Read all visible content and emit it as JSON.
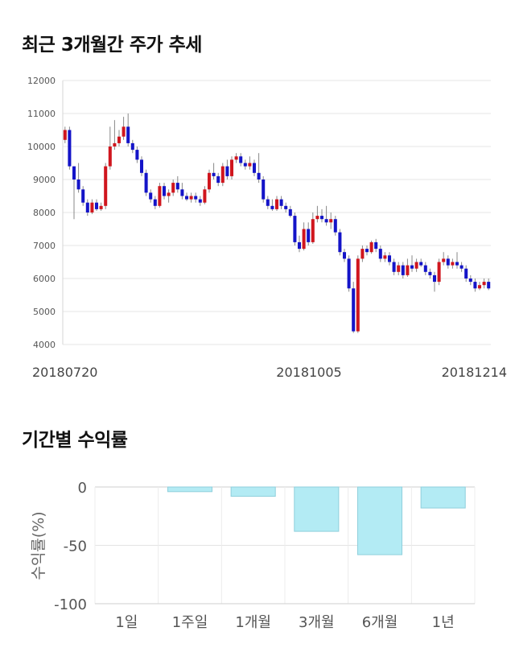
{
  "section1": {
    "title": "최근 3개월간 주가 추세"
  },
  "section2": {
    "title": "기간별 수익률"
  },
  "chart_data": [
    {
      "type": "candlestick",
      "y_ticks": [
        4000,
        5000,
        6000,
        7000,
        8000,
        9000,
        10000,
        11000,
        12000
      ],
      "ylim": [
        4000,
        12000
      ],
      "x_labels": [
        "20180720",
        "20181005",
        "20181214"
      ],
      "up_color": "#d0161e",
      "down_color": "#1414c8",
      "candles": [
        [
          10200,
          10500,
          10600,
          10100
        ],
        [
          10500,
          9400,
          10600,
          9300
        ],
        [
          9400,
          9000,
          9100,
          7800
        ],
        [
          9000,
          8700,
          9500,
          8600
        ],
        [
          8700,
          8300,
          8800,
          8200
        ],
        [
          8300,
          8000,
          8400,
          7900
        ],
        [
          8000,
          8300,
          8400,
          7950
        ],
        [
          8300,
          8100,
          8400,
          8050
        ],
        [
          8100,
          8200,
          8300,
          8050
        ],
        [
          8200,
          9400,
          9500,
          8100
        ],
        [
          9400,
          10000,
          10600,
          9300
        ],
        [
          10000,
          10100,
          10800,
          9900
        ],
        [
          10100,
          10300,
          10500,
          10000
        ],
        [
          10300,
          10600,
          10900,
          10200
        ],
        [
          10600,
          10100,
          11000,
          10000
        ],
        [
          10100,
          9900,
          10200,
          9800
        ],
        [
          9900,
          9600,
          10000,
          9500
        ],
        [
          9600,
          9200,
          9700,
          9100
        ],
        [
          9200,
          8600,
          9300,
          8500
        ],
        [
          8600,
          8400,
          8700,
          8300
        ],
        [
          8400,
          8200,
          8500,
          8100
        ],
        [
          8200,
          8800,
          8900,
          8150
        ],
        [
          8800,
          8500,
          8900,
          8400
        ],
        [
          8500,
          8600,
          8700,
          8300
        ],
        [
          8600,
          8900,
          9000,
          8500
        ],
        [
          8900,
          8700,
          9100,
          8600
        ],
        [
          8700,
          8500,
          8900,
          8400
        ],
        [
          8500,
          8400,
          8600,
          8350
        ],
        [
          8400,
          8500,
          8600,
          8300
        ],
        [
          8500,
          8400,
          8600,
          8300
        ],
        [
          8400,
          8300,
          8500,
          8200
        ],
        [
          8300,
          8700,
          8800,
          8250
        ],
        [
          8700,
          9200,
          9300,
          8600
        ],
        [
          9200,
          9100,
          9500,
          9000
        ],
        [
          9100,
          8900,
          9200,
          8800
        ],
        [
          8900,
          9400,
          9500,
          8800
        ],
        [
          9400,
          9100,
          9600,
          9000
        ],
        [
          9100,
          9600,
          9700,
          9000
        ],
        [
          9600,
          9700,
          9800,
          9500
        ],
        [
          9700,
          9500,
          9800,
          9400
        ],
        [
          9500,
          9400,
          9600,
          9300
        ],
        [
          9400,
          9500,
          9700,
          9300
        ],
        [
          9500,
          9200,
          9600,
          9100
        ],
        [
          9200,
          9000,
          9800,
          8900
        ],
        [
          9000,
          8400,
          9100,
          8300
        ],
        [
          8400,
          8200,
          8500,
          8100
        ],
        [
          8200,
          8100,
          8400,
          8050
        ],
        [
          8100,
          8400,
          8500,
          8050
        ],
        [
          8400,
          8200,
          8500,
          8100
        ],
        [
          8200,
          8100,
          8300,
          8000
        ],
        [
          8100,
          7900,
          8200,
          7850
        ],
        [
          7900,
          7100,
          8000,
          7000
        ],
        [
          7100,
          6900,
          7300,
          6800
        ],
        [
          6900,
          7500,
          7700,
          6850
        ],
        [
          7500,
          7100,
          7700,
          7000
        ],
        [
          7100,
          7800,
          8000,
          7050
        ],
        [
          7800,
          7900,
          8200,
          7700
        ],
        [
          7900,
          7800,
          8100,
          7700
        ],
        [
          7800,
          7700,
          8200,
          7600
        ],
        [
          7700,
          7800,
          8000,
          7500
        ],
        [
          7800,
          7400,
          7900,
          7300
        ],
        [
          7400,
          6800,
          7500,
          6700
        ],
        [
          6800,
          6600,
          6900,
          6500
        ],
        [
          6600,
          5700,
          6700,
          5600
        ],
        [
          5700,
          4400,
          5900,
          4350
        ],
        [
          4400,
          6600,
          6700,
          4350
        ],
        [
          6600,
          6900,
          7000,
          6500
        ],
        [
          6900,
          6800,
          7000,
          6700
        ],
        [
          6800,
          7100,
          7150,
          6750
        ],
        [
          7100,
          6900,
          7200,
          6800
        ],
        [
          6900,
          6600,
          7000,
          6500
        ],
        [
          6600,
          6700,
          6800,
          6500
        ],
        [
          6700,
          6500,
          6800,
          6400
        ],
        [
          6500,
          6200,
          6600,
          6100
        ],
        [
          6200,
          6400,
          6500,
          6100
        ],
        [
          6400,
          6100,
          6500,
          6000
        ],
        [
          6100,
          6400,
          6600,
          6050
        ],
        [
          6400,
          6300,
          6700,
          6200
        ],
        [
          6300,
          6500,
          6600,
          6200
        ],
        [
          6500,
          6400,
          6600,
          6350
        ],
        [
          6400,
          6200,
          6500,
          6100
        ],
        [
          6200,
          6100,
          6300,
          6000
        ],
        [
          6100,
          5900,
          6200,
          5600
        ],
        [
          5900,
          6500,
          6600,
          5800
        ],
        [
          6500,
          6600,
          6800,
          6400
        ],
        [
          6600,
          6400,
          6700,
          6300
        ],
        [
          6400,
          6500,
          6600,
          6300
        ],
        [
          6500,
          6400,
          6800,
          6300
        ],
        [
          6400,
          6300,
          6500,
          6200
        ],
        [
          6300,
          6000,
          6400,
          5900
        ],
        [
          6000,
          5900,
          6100,
          5800
        ],
        [
          5900,
          5700,
          6000,
          5600
        ],
        [
          5700,
          5800,
          5900,
          5650
        ],
        [
          5800,
          5900,
          6000,
          5700
        ],
        [
          5900,
          5700,
          6000,
          5650
        ]
      ]
    },
    {
      "type": "bar",
      "ylabel": "수익률(%)",
      "ylim": [
        -100,
        0
      ],
      "y_ticks": [
        0,
        -50,
        -100
      ],
      "categories": [
        "1일",
        "1주일",
        "1개월",
        "3개월",
        "6개월",
        "1년"
      ],
      "values": [
        0,
        -4,
        -8,
        -38,
        -58,
        -18
      ],
      "bar_color": "#b3ebf4",
      "bar_border": "#8fcfdc"
    }
  ]
}
